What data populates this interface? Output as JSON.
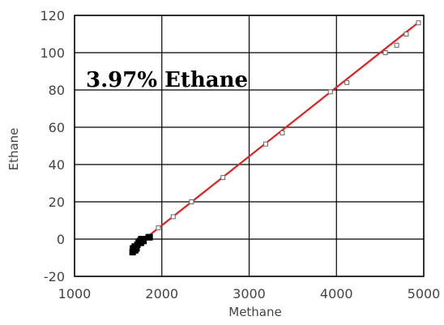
{
  "chart_data": {
    "type": "scatter",
    "title": "",
    "annotation": "3.97% Ethane",
    "xlabel": "Methane",
    "ylabel": "Ethane",
    "xlim": [
      1000,
      5000
    ],
    "ylim": [
      -20,
      120
    ],
    "x_ticks": [
      1000,
      2000,
      3000,
      4000,
      5000
    ],
    "y_ticks": [
      -20,
      0,
      20,
      40,
      60,
      80,
      100,
      120
    ],
    "grid": true,
    "colors": {
      "points": "#000000",
      "fit_line": "#e02020",
      "grid": "#000000",
      "frame": "#000000"
    },
    "series": [
      {
        "values": [
          {
            "x": 1665,
            "y": -7
          },
          {
            "x": 1670,
            "y": -5
          },
          {
            "x": 1680,
            "y": -6
          },
          {
            "x": 1690,
            "y": -4
          },
          {
            "x": 1695,
            "y": -6
          },
          {
            "x": 1710,
            "y": -5
          },
          {
            "x": 1720,
            "y": -3
          },
          {
            "x": 1735,
            "y": -2
          },
          {
            "x": 1750,
            "y": -1
          },
          {
            "x": 1760,
            "y": -2
          },
          {
            "x": 1765,
            "y": 0
          },
          {
            "x": 1780,
            "y": 0
          },
          {
            "x": 1790,
            "y": -1
          },
          {
            "x": 1850,
            "y": 1
          },
          {
            "x": 1860,
            "y": 1
          },
          {
            "x": 1960,
            "y": 6
          },
          {
            "x": 2130,
            "y": 12
          },
          {
            "x": 2340,
            "y": 20
          },
          {
            "x": 2700,
            "y": 33
          },
          {
            "x": 3190,
            "y": 51
          },
          {
            "x": 3380,
            "y": 57
          },
          {
            "x": 3930,
            "y": 79
          },
          {
            "x": 4120,
            "y": 84
          },
          {
            "x": 4560,
            "y": 100
          },
          {
            "x": 4690,
            "y": 104
          },
          {
            "x": 4800,
            "y": 110
          },
          {
            "x": 4940,
            "y": 116
          }
        ]
      }
    ],
    "fit_line": {
      "x": [
        1640,
        4960
      ],
      "y": [
        -6,
        117
      ]
    }
  }
}
